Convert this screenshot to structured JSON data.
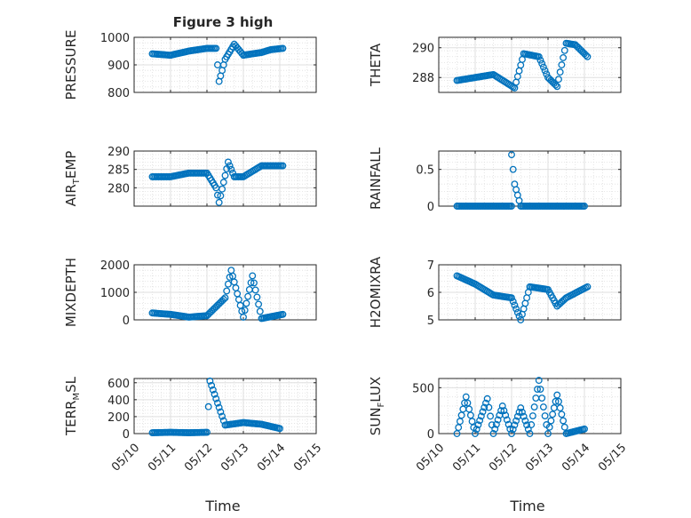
{
  "figure": {
    "title": "Figure 3 high",
    "xlabel": "Time",
    "x_tick_labels": [
      "05/10",
      "05/11",
      "05/12",
      "05/13",
      "05/14",
      "05/15"
    ]
  },
  "colors": {
    "marker": "#0072BD",
    "grid": "#dfdfdf",
    "axis": "#262626"
  },
  "chart_data": [
    {
      "type": "scatter",
      "ylabel": "PRESSURE",
      "ylim": [
        800,
        1000
      ],
      "yticks": [
        800,
        900,
        1000
      ],
      "xlim": [
        "05/10",
        "05/15"
      ],
      "grid": true,
      "x": [
        "05/10 12:00",
        "05/11 00:00",
        "05/11 12:00",
        "05/12 00:00",
        "05/12 06:00",
        "05/12 08:00",
        "05/12 12:00",
        "05/12 18:00",
        "05/13 00:00",
        "05/13 12:00",
        "05/13 18:00",
        "05/14 02:00"
      ],
      "y": [
        940,
        935,
        950,
        960,
        960,
        840,
        920,
        975,
        935,
        945,
        955,
        960
      ]
    },
    {
      "type": "scatter",
      "ylabel": "THETA",
      "ylim": [
        287.0,
        290.7
      ],
      "yticks": [
        288,
        290
      ],
      "xlim": [
        "05/10",
        "05/15"
      ],
      "grid": true,
      "x": [
        "05/10 12:00",
        "05/11 00:00",
        "05/11 12:00",
        "05/12 02:00",
        "05/12 08:00",
        "05/12 18:00",
        "05/13 00:00",
        "05/13 06:00",
        "05/13 12:00",
        "05/13 18:00",
        "05/14 02:00"
      ],
      "y": [
        287.8,
        288.0,
        288.2,
        287.3,
        289.6,
        289.4,
        288.0,
        287.4,
        290.3,
        290.2,
        289.4
      ]
    },
    {
      "type": "scatter",
      "ylabel": "AIR",
      "ylabel_sub": "T",
      "ylabel_tail": "EMP",
      "ylim": [
        275,
        290
      ],
      "yticks": [
        280,
        285,
        290
      ],
      "xlim": [
        "05/10",
        "05/15"
      ],
      "grid": true,
      "x": [
        "05/10 12:00",
        "05/11 00:00",
        "05/11 12:00",
        "05/12 00:00",
        "05/12 06:00",
        "05/12 08:00",
        "05/12 14:00",
        "05/12 18:00",
        "05/13 00:00",
        "05/13 12:00",
        "05/14 02:00"
      ],
      "y": [
        283,
        283,
        284,
        284,
        280,
        276,
        287,
        283,
        283,
        286,
        286
      ]
    },
    {
      "type": "scatter",
      "ylabel": "RAINFALL",
      "ylim": [
        0,
        0.75
      ],
      "yticks": [
        0,
        0.5
      ],
      "xlim": [
        "05/10",
        "05/15"
      ],
      "grid": true,
      "x": [
        "05/10 12:00",
        "05/11 00:00",
        "05/11 12:00",
        "05/12 00:00",
        "05/12 00:00",
        "05/12 02:00",
        "05/12 06:00",
        "05/12 12:00",
        "05/13 00:00",
        "05/14 00:00"
      ],
      "y": [
        0,
        0,
        0,
        0,
        0.7,
        0.3,
        0,
        0,
        0,
        0
      ]
    },
    {
      "type": "scatter",
      "ylabel": "MIXDEPTH",
      "ylim": [
        0,
        2000
      ],
      "yticks": [
        0,
        1000,
        2000
      ],
      "xlim": [
        "05/10",
        "05/15"
      ],
      "grid": true,
      "x": [
        "05/10 12:00",
        "05/11 00:00",
        "05/11 12:00",
        "05/12 00:00",
        "05/12 12:00",
        "05/12 16:00",
        "05/13 00:00",
        "05/13 06:00",
        "05/13 12:00",
        "05/14 02:00"
      ],
      "y": [
        250,
        200,
        100,
        150,
        800,
        1800,
        100,
        1600,
        50,
        200
      ]
    },
    {
      "type": "scatter",
      "ylabel": "H2OMIXRA",
      "ylim": [
        5,
        7
      ],
      "yticks": [
        5,
        6,
        7
      ],
      "xlim": [
        "05/10",
        "05/15"
      ],
      "grid": true,
      "x": [
        "05/10 12:00",
        "05/11 00:00",
        "05/11 12:00",
        "05/12 00:00",
        "05/12 06:00",
        "05/12 12:00",
        "05/13 00:00",
        "05/13 06:00",
        "05/13 12:00",
        "05/14 02:00"
      ],
      "y": [
        6.6,
        6.3,
        5.9,
        5.8,
        5.0,
        6.2,
        6.1,
        5.5,
        5.8,
        6.2
      ]
    },
    {
      "type": "scatter",
      "ylabel": "TERR",
      "ylabel_sub": "M",
      "ylabel_tail": "SL",
      "ylim": [
        0,
        650
      ],
      "yticks": [
        0,
        200,
        400,
        600
      ],
      "xlim": [
        "05/10",
        "05/15"
      ],
      "grid": true,
      "x": [
        "05/10 12:00",
        "05/11 00:00",
        "05/11 12:00",
        "05/12 00:00",
        "05/12 02:00",
        "05/12 12:00",
        "05/13 00:00",
        "05/13 12:00",
        "05/14 00:00"
      ],
      "y": [
        10,
        15,
        10,
        15,
        620,
        100,
        130,
        110,
        60
      ]
    },
    {
      "type": "scatter",
      "ylabel": "SUN",
      "ylabel_sub": "F",
      "ylabel_tail": "LUX",
      "ylim": [
        0,
        600
      ],
      "yticks": [
        0,
        500
      ],
      "xlim": [
        "05/10",
        "05/15"
      ],
      "grid": true,
      "x": [
        "05/10 12:00",
        "05/10 18:00",
        "05/11 00:00",
        "05/11 08:00",
        "05/11 12:00",
        "05/11 18:00",
        "05/12 00:00",
        "05/12 06:00",
        "05/12 12:00",
        "05/12 18:00",
        "05/13 00:00",
        "05/13 06:00",
        "05/13 12:00",
        "05/14 00:00"
      ],
      "y": [
        0,
        400,
        0,
        380,
        0,
        300,
        0,
        280,
        0,
        580,
        0,
        420,
        0,
        50
      ]
    }
  ]
}
